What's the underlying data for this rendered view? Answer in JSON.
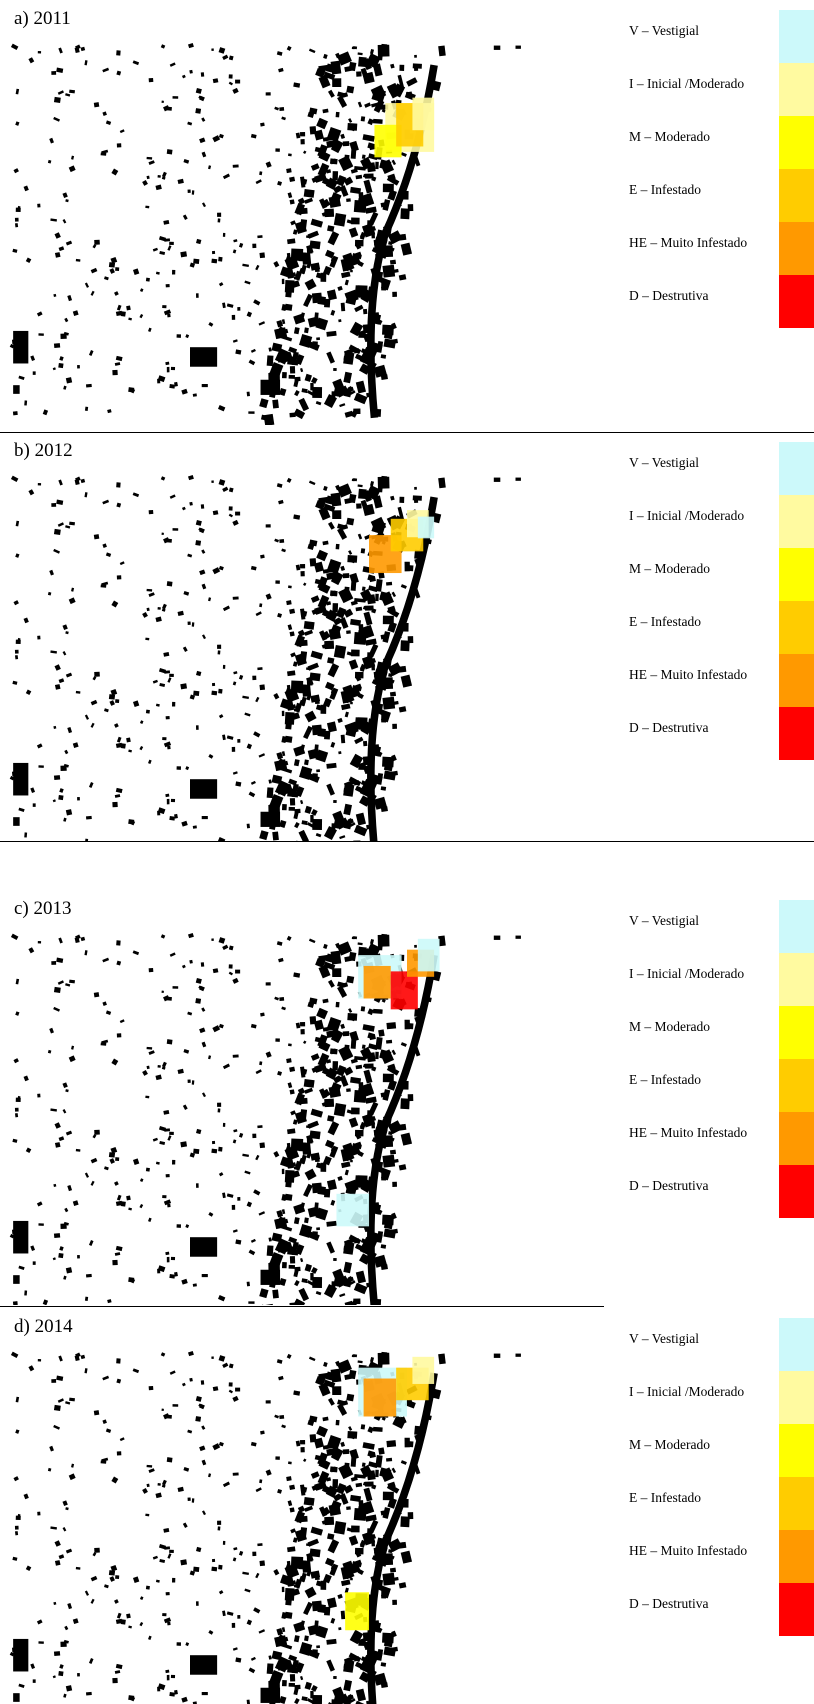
{
  "panels": [
    {
      "label": "a) 2011"
    },
    {
      "label": "b) 2012"
    },
    {
      "label": "c) 2013"
    },
    {
      "label": "d) 2014"
    }
  ],
  "legend": [
    {
      "label": "V – Vestigial",
      "color": "#ccf9fa"
    },
    {
      "label": "I – Inicial /Moderado",
      "color": "#fffaa0"
    },
    {
      "label": "M – Moderado",
      "color": "#ffff00"
    },
    {
      "label": "E – Infestado",
      "color": "#ffcc00"
    },
    {
      "label": "HE – Muito Infestado",
      "color": "#ff9900"
    },
    {
      "label": "D – Destrutiva",
      "color": "#ff0000"
    }
  ]
}
